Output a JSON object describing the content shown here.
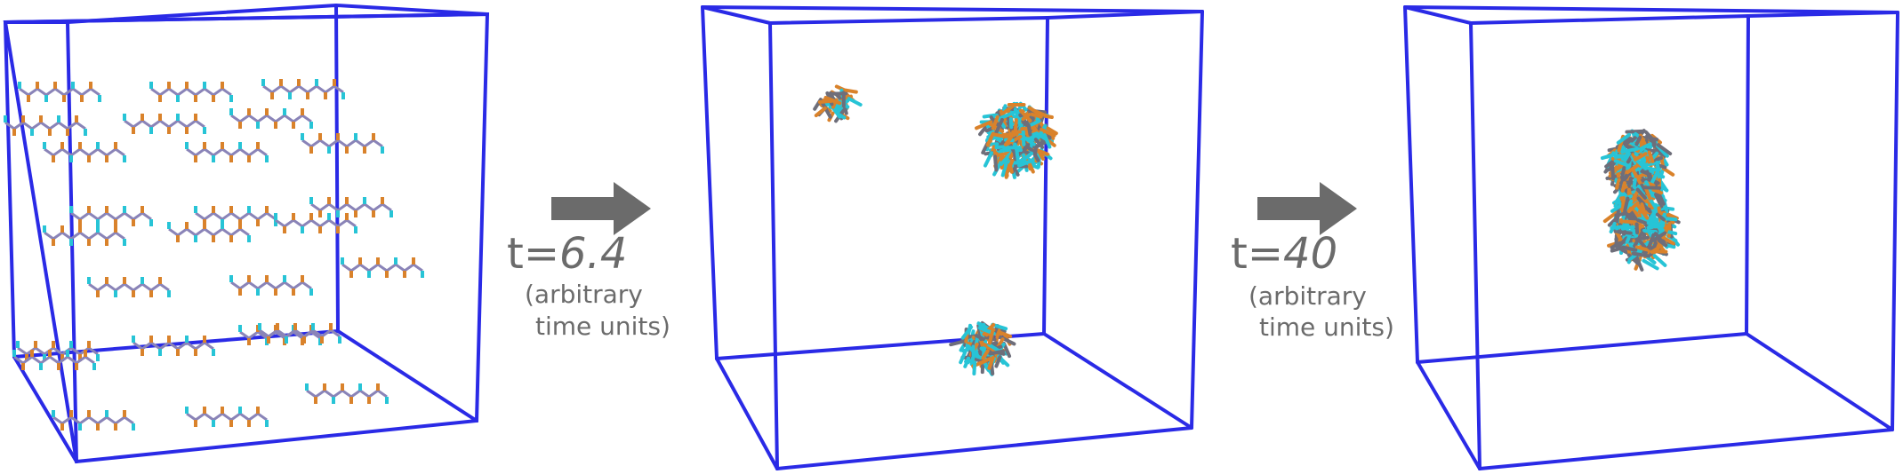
{
  "colors": {
    "box_edge": "#2a2ae6",
    "arrow": "#6b6b6b",
    "label": "#6b6b6b",
    "backbone": "#8a84b8",
    "head_orange": "#d9822b",
    "head_cyan": "#27c4d6",
    "cluster_gray": "#6e6e7a"
  },
  "panels": [
    {
      "name": "initial-state",
      "description_visible": "dispersed molecules"
    },
    {
      "name": "intermediate-state",
      "description_visible": "three clusters"
    },
    {
      "name": "final-state",
      "description_visible": "single aggregate"
    }
  ],
  "transitions": [
    {
      "prefix": "t=",
      "value": "6.4",
      "units_line1": "(arbitrary",
      "units_line2": "time units)"
    },
    {
      "prefix": "t=",
      "value": "40",
      "units_line1": "(arbitrary",
      "units_line2": "time units)"
    }
  ]
}
